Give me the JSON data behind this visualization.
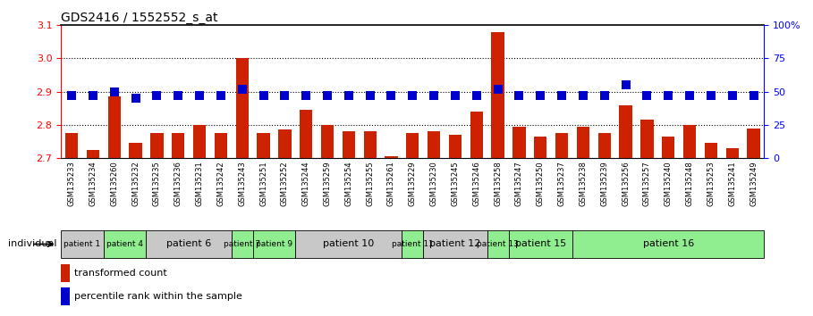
{
  "title": "GDS2416 / 1552552_s_at",
  "samples": [
    "GSM135233",
    "GSM135234",
    "GSM135260",
    "GSM135232",
    "GSM135235",
    "GSM135236",
    "GSM135231",
    "GSM135242",
    "GSM135243",
    "GSM135251",
    "GSM135252",
    "GSM135244",
    "GSM135259",
    "GSM135254",
    "GSM135255",
    "GSM135261",
    "GSM135229",
    "GSM135230",
    "GSM135245",
    "GSM135246",
    "GSM135258",
    "GSM135247",
    "GSM135250",
    "GSM135237",
    "GSM135238",
    "GSM135239",
    "GSM135256",
    "GSM135257",
    "GSM135240",
    "GSM135248",
    "GSM135253",
    "GSM135241",
    "GSM135249"
  ],
  "bar_values": [
    2.775,
    2.725,
    2.885,
    2.745,
    2.775,
    2.775,
    2.8,
    2.775,
    3.0,
    2.775,
    2.785,
    2.845,
    2.8,
    2.78,
    2.78,
    2.705,
    2.775,
    2.78,
    2.77,
    2.84,
    3.08,
    2.795,
    2.765,
    2.775,
    2.795,
    2.775,
    2.86,
    2.815,
    2.765,
    2.8,
    2.745,
    2.73,
    2.79
  ],
  "percentile_values": [
    47,
    47,
    50,
    45,
    47,
    47,
    47,
    47,
    52,
    47,
    47,
    47,
    47,
    47,
    47,
    47,
    47,
    47,
    47,
    47,
    52,
    47,
    47,
    47,
    47,
    47,
    55,
    47,
    47,
    47,
    47,
    47,
    47
  ],
  "patients": [
    {
      "label": "patient 1",
      "start": 0,
      "end": 2,
      "color": "#c8c8c8"
    },
    {
      "label": "patient 4",
      "start": 2,
      "end": 4,
      "color": "#90ee90"
    },
    {
      "label": "patient 6",
      "start": 4,
      "end": 8,
      "color": "#c8c8c8"
    },
    {
      "label": "patient 7",
      "start": 8,
      "end": 9,
      "color": "#90ee90"
    },
    {
      "label": "patient 9",
      "start": 9,
      "end": 11,
      "color": "#90ee90"
    },
    {
      "label": "patient 10",
      "start": 11,
      "end": 16,
      "color": "#c8c8c8"
    },
    {
      "label": "patient 11",
      "start": 16,
      "end": 17,
      "color": "#90ee90"
    },
    {
      "label": "patient 12",
      "start": 17,
      "end": 20,
      "color": "#c8c8c8"
    },
    {
      "label": "patient 13",
      "start": 20,
      "end": 21,
      "color": "#90ee90"
    },
    {
      "label": "patient 15",
      "start": 21,
      "end": 24,
      "color": "#90ee90"
    },
    {
      "label": "patient 16",
      "start": 24,
      "end": 33,
      "color": "#90ee90"
    }
  ],
  "ylim_left": [
    2.7,
    3.1
  ],
  "ylim_right": [
    0,
    100
  ],
  "yticks_left": [
    2.7,
    2.8,
    2.9,
    3.0,
    3.1
  ],
  "yticks_right": [
    0,
    25,
    50,
    75,
    100
  ],
  "ytick_labels_right": [
    "0",
    "25",
    "50",
    "75",
    "100%"
  ],
  "bar_color": "#cc2200",
  "percentile_color": "#0000cc",
  "bar_width": 0.6,
  "grid_values": [
    2.8,
    2.9,
    3.0
  ]
}
